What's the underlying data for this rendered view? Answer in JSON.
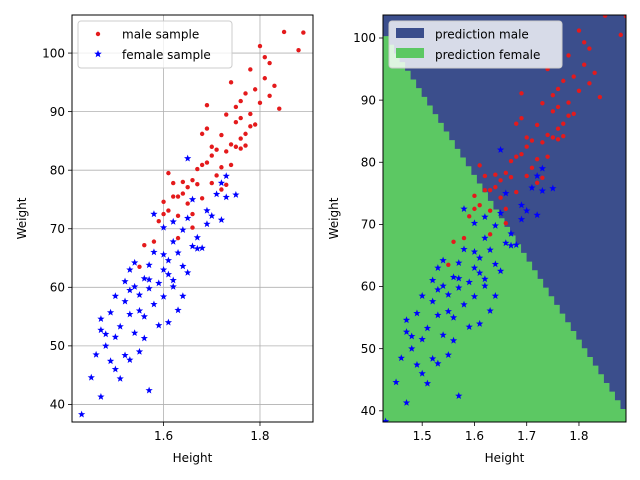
{
  "chart_data": [
    {
      "type": "scatter",
      "xlabel": "Height",
      "ylabel": "Weight",
      "xlim": [
        1.41,
        1.91
      ],
      "ylim": [
        37,
        106.5
      ],
      "xticks": [
        1.6,
        1.8
      ],
      "xtick_labels": [
        "1.6",
        "1.8"
      ],
      "yticks": [
        40,
        50,
        60,
        70,
        80,
        90,
        100
      ],
      "ytick_labels": [
        "40",
        "50",
        "60",
        "70",
        "80",
        "90",
        "100"
      ],
      "grid": true,
      "legend_position": "top-left",
      "series": [
        {
          "name": "male sample",
          "color": "#e41a1c",
          "marker": "dot",
          "points": [
            [
              1.55,
              63.5
            ],
            [
              1.56,
              67.2
            ],
            [
              1.6,
              74.6
            ],
            [
              1.6,
              72.5
            ],
            [
              1.61,
              79.5
            ],
            [
              1.61,
              73.1
            ],
            [
              1.62,
              75.5
            ],
            [
              1.62,
              77.8
            ],
            [
              1.63,
              72.2
            ],
            [
              1.63,
              75.5
            ],
            [
              1.64,
              76.0
            ],
            [
              1.64,
              78.0
            ],
            [
              1.65,
              74.3
            ],
            [
              1.65,
              77.1
            ],
            [
              1.66,
              78.3
            ],
            [
              1.66,
              72.5
            ],
            [
              1.67,
              80.2
            ],
            [
              1.67,
              77.6
            ],
            [
              1.68,
              80.9
            ],
            [
              1.68,
              86.2
            ],
            [
              1.68,
              75.2
            ],
            [
              1.69,
              87.1
            ],
            [
              1.69,
              81.3
            ],
            [
              1.69,
              91.1
            ],
            [
              1.7,
              77.8
            ],
            [
              1.7,
              82.5
            ],
            [
              1.71,
              83.5
            ],
            [
              1.71,
              79.1
            ],
            [
              1.72,
              80.5
            ],
            [
              1.72,
              86.0
            ],
            [
              1.72,
              76.7
            ],
            [
              1.73,
              83.2
            ],
            [
              1.73,
              89.5
            ],
            [
              1.74,
              84.4
            ],
            [
              1.74,
              80.9
            ],
            [
              1.74,
              95.0
            ],
            [
              1.75,
              88.2
            ],
            [
              1.75,
              84.0
            ],
            [
              1.75,
              90.8
            ],
            [
              1.76,
              85.4
            ],
            [
              1.76,
              91.8
            ],
            [
              1.76,
              88.9
            ],
            [
              1.77,
              86.2
            ],
            [
              1.77,
              93.1
            ],
            [
              1.77,
              84.2
            ],
            [
              1.78,
              89.6
            ],
            [
              1.78,
              97.2
            ],
            [
              1.78,
              87.5
            ],
            [
              1.79,
              93.8
            ],
            [
              1.79,
              87.8
            ],
            [
              1.8,
              101.2
            ],
            [
              1.8,
              91.5
            ],
            [
              1.81,
              95.7
            ],
            [
              1.81,
              99.3
            ],
            [
              1.82,
              98.3
            ],
            [
              1.82,
              92.7
            ],
            [
              1.83,
              94.4
            ],
            [
              1.84,
              90.5
            ],
            [
              1.85,
              103.6
            ],
            [
              1.88,
              100.5
            ],
            [
              1.89,
              103.5
            ],
            [
              1.58,
              67.8
            ],
            [
              1.59,
              71.3
            ],
            [
              1.63,
              68.4
            ],
            [
              1.66,
              70.2
            ],
            [
              1.7,
              84.0
            ],
            [
              1.73,
              77.5
            ],
            [
              1.76,
              83.7
            ]
          ]
        },
        {
          "name": "female sample",
          "color": "#0000ff",
          "marker": "star",
          "points": [
            [
              1.43,
              38.3
            ],
            [
              1.45,
              44.6
            ],
            [
              1.46,
              48.5
            ],
            [
              1.47,
              41.3
            ],
            [
              1.47,
              52.7
            ],
            [
              1.47,
              54.6
            ],
            [
              1.48,
              50.0
            ],
            [
              1.48,
              52.0
            ],
            [
              1.49,
              55.7
            ],
            [
              1.49,
              47.4
            ],
            [
              1.5,
              58.5
            ],
            [
              1.5,
              51.5
            ],
            [
              1.5,
              46.0
            ],
            [
              1.51,
              53.3
            ],
            [
              1.51,
              44.4
            ],
            [
              1.52,
              61.0
            ],
            [
              1.52,
              48.4
            ],
            [
              1.52,
              57.6
            ],
            [
              1.53,
              59.5
            ],
            [
              1.53,
              55.4
            ],
            [
              1.53,
              63.0
            ],
            [
              1.53,
              47.6
            ],
            [
              1.54,
              60.1
            ],
            [
              1.54,
              52.2
            ],
            [
              1.54,
              64.2
            ],
            [
              1.55,
              56.0
            ],
            [
              1.55,
              58.7
            ],
            [
              1.55,
              49.0
            ],
            [
              1.56,
              61.5
            ],
            [
              1.56,
              55.0
            ],
            [
              1.56,
              51.3
            ],
            [
              1.57,
              63.8
            ],
            [
              1.57,
              42.4
            ],
            [
              1.57,
              59.8
            ],
            [
              1.58,
              66.0
            ],
            [
              1.58,
              57.1
            ],
            [
              1.58,
              72.5
            ],
            [
              1.59,
              60.7
            ],
            [
              1.59,
              53.5
            ],
            [
              1.6,
              63.0
            ],
            [
              1.6,
              58.4
            ],
            [
              1.6,
              70.2
            ],
            [
              1.61,
              64.6
            ],
            [
              1.61,
              54.0
            ],
            [
              1.61,
              62.2
            ],
            [
              1.62,
              67.8
            ],
            [
              1.62,
              61.2
            ],
            [
              1.62,
              71.2
            ],
            [
              1.63,
              65.9
            ],
            [
              1.63,
              56.1
            ],
            [
              1.64,
              63.6
            ],
            [
              1.64,
              58.5
            ],
            [
              1.64,
              69.8
            ],
            [
              1.65,
              62.5
            ],
            [
              1.65,
              82.0
            ],
            [
              1.65,
              71.8
            ],
            [
              1.66,
              67.0
            ],
            [
              1.66,
              75.0
            ],
            [
              1.67,
              66.6
            ],
            [
              1.67,
              68.5
            ],
            [
              1.68,
              66.7
            ],
            [
              1.69,
              73.1
            ],
            [
              1.69,
              70.8
            ],
            [
              1.7,
              72.2
            ],
            [
              1.71,
              75.9
            ],
            [
              1.72,
              77.8
            ],
            [
              1.72,
              71.5
            ],
            [
              1.73,
              75.4
            ],
            [
              1.73,
              79.0
            ],
            [
              1.75,
              75.8
            ],
            [
              1.6,
              65.6
            ],
            [
              1.62,
              60.1
            ],
            [
              1.57,
              61.3
            ]
          ]
        }
      ]
    },
    {
      "type": "scatter",
      "xlabel": "Height",
      "ylabel": "Weight",
      "xlim": [
        1.425,
        1.89
      ],
      "ylim": [
        38.2,
        103.7
      ],
      "xticks": [
        1.5,
        1.6,
        1.7,
        1.8
      ],
      "xtick_labels": [
        "1.5",
        "1.6",
        "1.7",
        "1.8"
      ],
      "yticks": [
        40,
        50,
        60,
        70,
        80,
        90,
        100
      ],
      "ytick_labels": [
        "40",
        "50",
        "60",
        "70",
        "80",
        "90",
        "100"
      ],
      "grid": false,
      "legend_position": "top-left",
      "regions": [
        {
          "name": "prediction male",
          "color": "#3b4e8c"
        },
        {
          "name": "prediction female",
          "color": "#5cc863"
        }
      ],
      "decision_boundary": [
        [
          1.425,
          100.3
        ],
        [
          1.89,
          38.9
        ]
      ],
      "series_ref": "same samples as left panel"
    }
  ]
}
